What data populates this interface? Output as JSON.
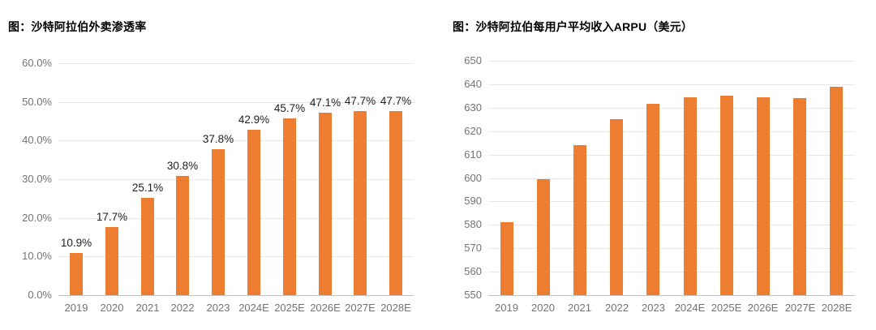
{
  "colors": {
    "bar": "#ED7D31",
    "grid_line": "#E7E7E7",
    "axis_line": "#C2C2C2",
    "tick_text": "#737373",
    "data_label_text": "#1F1F1F",
    "title_text": "#000000",
    "background": "#FFFFFF"
  },
  "chart_data": [
    {
      "type": "bar",
      "title": "图：沙特阿拉伯外卖渗透率",
      "categories": [
        "2019",
        "2020",
        "2021",
        "2022",
        "2023",
        "2024E",
        "2025E",
        "2026E",
        "2027E",
        "2028E"
      ],
      "values": [
        10.9,
        17.7,
        25.1,
        30.8,
        37.8,
        42.9,
        45.7,
        47.1,
        47.7,
        47.7
      ],
      "data_labels": [
        "10.9%",
        "17.7%",
        "25.1%",
        "30.8%",
        "37.8%",
        "42.9%",
        "45.7%",
        "47.1%",
        "47.7%",
        "47.7%"
      ],
      "show_data_labels": true,
      "ylim": [
        0,
        60
      ],
      "ytick_labels": [
        "0.0%",
        "10.0%",
        "20.0%",
        "30.0%",
        "40.0%",
        "50.0%",
        "60.0%"
      ],
      "xlabel": "",
      "ylabel": "",
      "grid": true,
      "legend": "none"
    },
    {
      "type": "bar",
      "title": "图：沙特阿拉伯每用户平均收入ARPU（美元）",
      "categories": [
        "2019",
        "2020",
        "2021",
        "2022",
        "2023",
        "2024E",
        "2025E",
        "2026E",
        "2027E",
        "2028E"
      ],
      "values": [
        581,
        599.5,
        614,
        625,
        631.5,
        634.5,
        635,
        634.5,
        634,
        639
      ],
      "data_labels": [],
      "show_data_labels": false,
      "ylim": [
        550,
        650
      ],
      "ytick_labels": [
        "550",
        "560",
        "570",
        "580",
        "590",
        "600",
        "610",
        "620",
        "630",
        "640",
        "650"
      ],
      "xlabel": "",
      "ylabel": "",
      "grid": true,
      "legend": "none"
    }
  ]
}
